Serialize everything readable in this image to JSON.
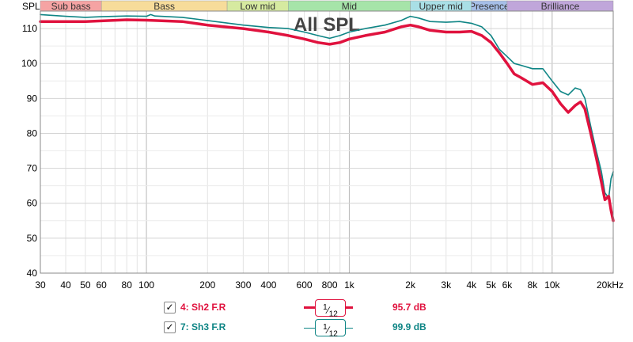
{
  "chart_data": {
    "type": "line",
    "title": "All SPL",
    "ylabel": "SPL",
    "xlabel": "",
    "x_scale": "log",
    "xlim": [
      30,
      20000
    ],
    "ylim": [
      40,
      115
    ],
    "grid": true,
    "x_ticks": [
      {
        "v": 30,
        "label": "30"
      },
      {
        "v": 40,
        "label": "40"
      },
      {
        "v": 50,
        "label": "50"
      },
      {
        "v": 60,
        "label": "60"
      },
      {
        "v": 80,
        "label": "80"
      },
      {
        "v": 100,
        "label": "100"
      },
      {
        "v": 200,
        "label": "200"
      },
      {
        "v": 300,
        "label": "300"
      },
      {
        "v": 400,
        "label": "400"
      },
      {
        "v": 600,
        "label": "600"
      },
      {
        "v": 800,
        "label": "800"
      },
      {
        "v": 1000,
        "label": "1k"
      },
      {
        "v": 2000,
        "label": "2k"
      },
      {
        "v": 3000,
        "label": "3k"
      },
      {
        "v": 4000,
        "label": "4k"
      },
      {
        "v": 5000,
        "label": "5k"
      },
      {
        "v": 6000,
        "label": "6k"
      },
      {
        "v": 8000,
        "label": "8k"
      },
      {
        "v": 10000,
        "label": "10k"
      },
      {
        "v": 20000,
        "label": "20kHz"
      }
    ],
    "y_ticks": [
      110,
      100,
      90,
      80,
      70,
      60,
      50,
      40
    ],
    "bands": [
      {
        "label": "Sub bass",
        "from": 30,
        "to": 60,
        "color": "#f5a3a3"
      },
      {
        "label": "Bass",
        "from": 60,
        "to": 250,
        "color": "#f7dc9a"
      },
      {
        "label": "Low mid",
        "from": 250,
        "to": 500,
        "color": "#d6eaa0"
      },
      {
        "label": "Mid",
        "from": 500,
        "to": 2000,
        "color": "#a6e4a9"
      },
      {
        "label": "Upper mid",
        "from": 2000,
        "to": 4000,
        "color": "#a9dfe6"
      },
      {
        "label": "Presence",
        "from": 4000,
        "to": 6000,
        "color": "#a6bfe8"
      },
      {
        "label": "Brilliance",
        "from": 6000,
        "to": 20000,
        "color": "#c0a6da"
      }
    ],
    "series": [
      {
        "name": "4: Sh2 F.R",
        "color": "#e0123e",
        "smoothing": "1/12",
        "level": "95.7 dB",
        "points": [
          [
            30,
            112
          ],
          [
            40,
            112
          ],
          [
            50,
            112
          ],
          [
            60,
            112.2
          ],
          [
            80,
            112.5
          ],
          [
            100,
            112.4
          ],
          [
            150,
            112
          ],
          [
            200,
            111
          ],
          [
            300,
            110
          ],
          [
            400,
            109
          ],
          [
            500,
            108
          ],
          [
            600,
            107
          ],
          [
            700,
            106
          ],
          [
            800,
            105.5
          ],
          [
            900,
            106
          ],
          [
            1000,
            107
          ],
          [
            1200,
            108
          ],
          [
            1500,
            109
          ],
          [
            1800,
            110.5
          ],
          [
            2000,
            111
          ],
          [
            2200,
            110.5
          ],
          [
            2500,
            109.5
          ],
          [
            3000,
            109
          ],
          [
            3500,
            109
          ],
          [
            4000,
            109.2
          ],
          [
            4500,
            108
          ],
          [
            5000,
            106
          ],
          [
            5500,
            103
          ],
          [
            6000,
            100
          ],
          [
            6500,
            97
          ],
          [
            7000,
            96
          ],
          [
            8000,
            94
          ],
          [
            9000,
            94.5
          ],
          [
            10000,
            92
          ],
          [
            11000,
            88.5
          ],
          [
            12000,
            86
          ],
          [
            13000,
            88
          ],
          [
            13800,
            89
          ],
          [
            14500,
            87
          ],
          [
            15500,
            80
          ],
          [
            16500,
            73
          ],
          [
            17500,
            66
          ],
          [
            18200,
            61
          ],
          [
            19000,
            62
          ],
          [
            19500,
            58
          ],
          [
            20000,
            55
          ]
        ]
      },
      {
        "name": "7: Sh3 F.R",
        "color": "#0e8585",
        "smoothing": "1/12",
        "level": "99.9 dB",
        "points": [
          [
            30,
            114
          ],
          [
            40,
            113.5
          ],
          [
            50,
            113.2
          ],
          [
            60,
            113.4
          ],
          [
            80,
            113.6
          ],
          [
            100,
            113.5
          ],
          [
            105,
            114
          ],
          [
            110,
            113.6
          ],
          [
            150,
            113.2
          ],
          [
            200,
            112.3
          ],
          [
            300,
            111
          ],
          [
            400,
            110.3
          ],
          [
            500,
            110
          ],
          [
            600,
            109
          ],
          [
            700,
            108
          ],
          [
            800,
            107.2
          ],
          [
            900,
            108
          ],
          [
            1000,
            109
          ],
          [
            1200,
            110
          ],
          [
            1500,
            111
          ],
          [
            1800,
            112.3
          ],
          [
            2000,
            113.5
          ],
          [
            2200,
            113
          ],
          [
            2500,
            112
          ],
          [
            3000,
            111.8
          ],
          [
            3500,
            112
          ],
          [
            4000,
            111.5
          ],
          [
            4500,
            110.5
          ],
          [
            5000,
            108
          ],
          [
            5500,
            104
          ],
          [
            6000,
            102
          ],
          [
            6500,
            100
          ],
          [
            7000,
            99.5
          ],
          [
            8000,
            98.5
          ],
          [
            9000,
            98.5
          ],
          [
            10000,
            95
          ],
          [
            11000,
            92
          ],
          [
            12000,
            91
          ],
          [
            13000,
            93
          ],
          [
            13800,
            92.5
          ],
          [
            14500,
            90
          ],
          [
            15500,
            82
          ],
          [
            16500,
            75
          ],
          [
            17500,
            69
          ],
          [
            18200,
            63
          ],
          [
            19000,
            61.5
          ],
          [
            19500,
            67
          ],
          [
            20000,
            69
          ]
        ]
      }
    ]
  },
  "legend": [
    {
      "name": "4: Sh2 F.R",
      "checkmark": "✓",
      "smoothing_num": "1",
      "smoothing_den": "12",
      "level": "95.7 dB",
      "color": "#e0123e"
    },
    {
      "name": "7: Sh3 F.R",
      "checkmark": "✓",
      "smoothing_num": "1",
      "smoothing_den": "12",
      "level": "99.9 dB",
      "color": "#0e8585"
    }
  ]
}
